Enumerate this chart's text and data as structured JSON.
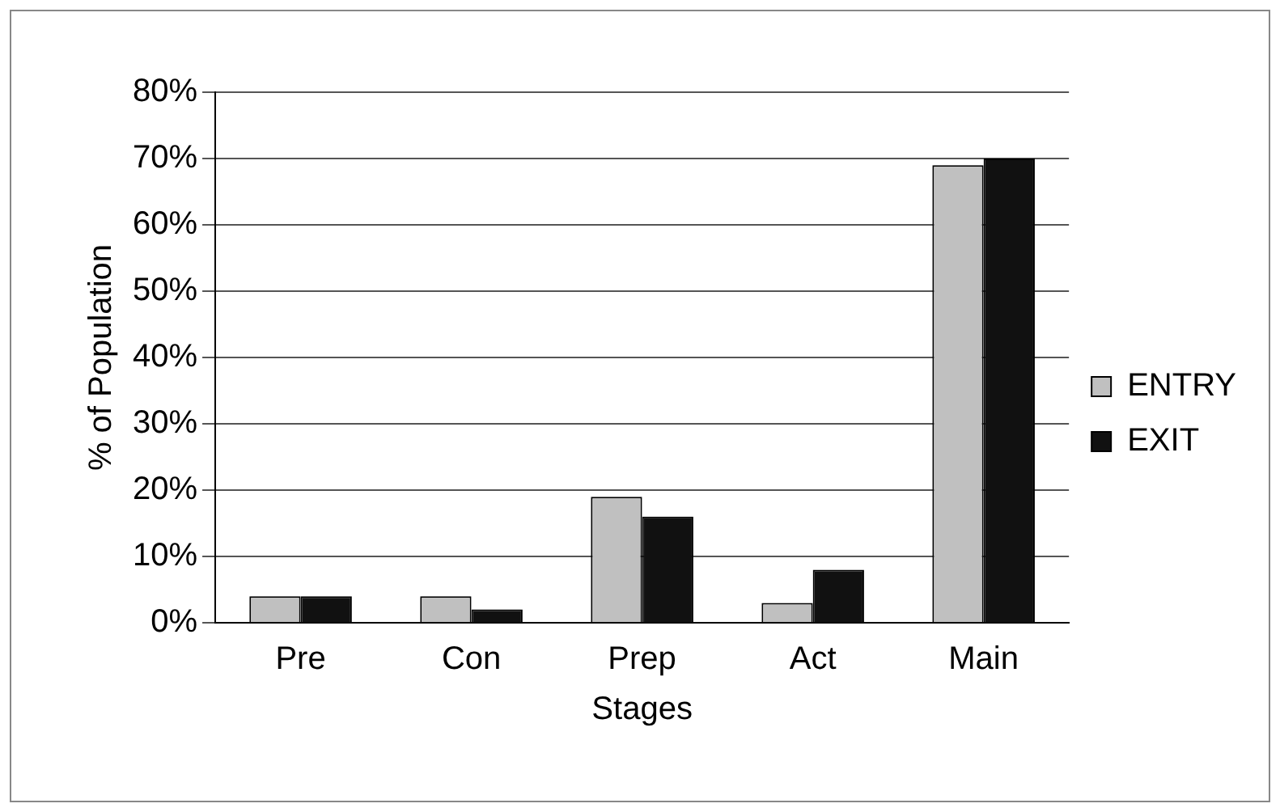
{
  "chart_data": {
    "type": "bar",
    "xlabel": "Stages",
    "ylabel": "% of Population",
    "categories": [
      "Pre",
      "Con",
      "Prep",
      "Act",
      "Main"
    ],
    "series": [
      {
        "name": "ENTRY",
        "color": "#c0c0c0",
        "values": [
          4,
          4,
          19,
          3,
          69
        ]
      },
      {
        "name": "EXIT",
        "color": "#111111",
        "values": [
          4,
          2,
          16,
          8,
          70
        ]
      }
    ],
    "ylim": [
      0,
      80
    ],
    "yticks": [
      {
        "value": 0,
        "label": "0%"
      },
      {
        "value": 10,
        "label": "10%"
      },
      {
        "value": 20,
        "label": "20%"
      },
      {
        "value": 30,
        "label": "30%"
      },
      {
        "value": 40,
        "label": "40%"
      },
      {
        "value": 50,
        "label": "50%"
      },
      {
        "value": 60,
        "label": "60%"
      },
      {
        "value": 70,
        "label": "70%"
      },
      {
        "value": 80,
        "label": "80%"
      }
    ],
    "grid": "y",
    "legend": "right"
  }
}
